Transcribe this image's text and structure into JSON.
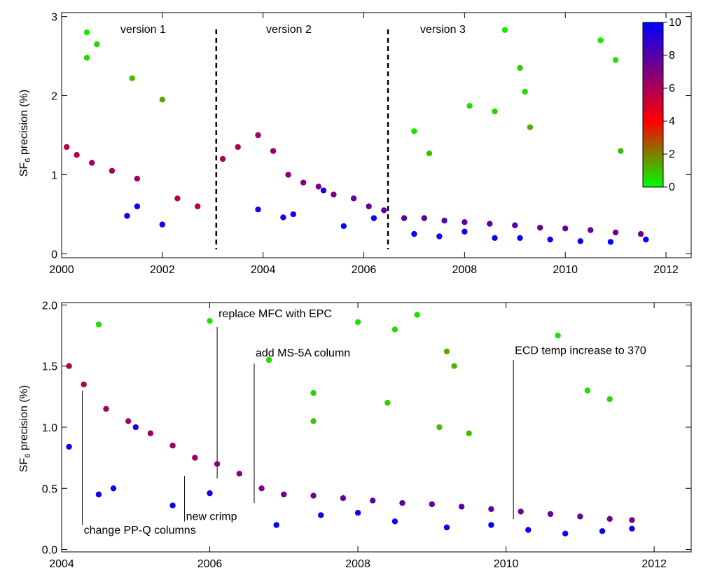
{
  "colors": {
    "colorscale": [
      "#00ff00",
      "#ff0000",
      "#0000ff"
    ],
    "axis": "#000000",
    "marker_edge": "#000000"
  },
  "colorbar": {
    "range": [
      0,
      10
    ],
    "ticks": [
      "0",
      "2",
      "4",
      "6",
      "8",
      "10"
    ],
    "scale_stops": [
      0,
      4,
      10
    ],
    "orientation": "vertical",
    "placement": "top-right of top panel"
  },
  "chart_data": [
    {
      "type": "scatter",
      "panel": "top",
      "title": "",
      "ylabel_main": "SF",
      "ylabel_sub": "6",
      "ylabel_rest": " precision (%)",
      "xlabel": "",
      "xlim": [
        2000,
        2012.5
      ],
      "ylim": [
        -0.05,
        3.05
      ],
      "x_ticks": [
        2000,
        2002,
        2004,
        2006,
        2008,
        2010,
        2012
      ],
      "x_tick_labels": [
        "2000",
        "2002",
        "2004",
        "2006",
        "2008",
        "2010",
        "2012"
      ],
      "y_ticks": [
        0,
        1,
        2,
        3
      ],
      "y_tick_labels": [
        "0",
        "1",
        "2",
        "3"
      ],
      "grid": false,
      "version_dividers": [
        2003.07,
        2006.48
      ],
      "version_labels": [
        "version 1",
        "version 2",
        "version 3"
      ],
      "series": [
        {
          "type": "scatter",
          "x": [
            2000.5,
            2000.7,
            2000.5,
            2001.4,
            2002.0,
            2007.0,
            2008.8,
            2009.1,
            2009.2,
            2010.7,
            2011.0,
            2011.1,
            2008.1,
            2009.3,
            2007.3,
            2008.6
          ],
          "y": [
            2.8,
            2.65,
            2.48,
            2.22,
            1.95,
            1.55,
            2.83,
            2.35,
            2.05,
            2.7,
            2.45,
            1.3,
            1.87,
            1.6,
            1.27,
            1.8
          ],
          "color_values": [
            0.4,
            0.6,
            0.5,
            1.0,
            1.4,
            0.5,
            0.3,
            0.8,
            0.6,
            0.3,
            0.5,
            1.0,
            0.6,
            1.3,
            0.9,
            0.7
          ]
        },
        {
          "type": "scatter",
          "x": [
            2000.1,
            2000.3,
            2000.6,
            2001.0,
            2001.5,
            2002.3,
            2002.7,
            2003.2,
            2003.5,
            2003.9,
            2004.2,
            2004.5,
            2004.8,
            2005.1,
            2005.4,
            2005.8,
            2006.1,
            2006.4,
            2006.8,
            2007.2,
            2007.6,
            2008.0,
            2008.5,
            2009.0,
            2009.5,
            2010.0,
            2010.5,
            2011.0,
            2011.5
          ],
          "y": [
            1.35,
            1.25,
            1.15,
            1.05,
            0.95,
            0.7,
            0.6,
            1.2,
            1.35,
            1.5,
            1.3,
            1.0,
            0.9,
            0.85,
            0.75,
            0.7,
            0.6,
            0.55,
            0.45,
            0.45,
            0.42,
            0.4,
            0.38,
            0.36,
            0.33,
            0.32,
            0.3,
            0.27,
            0.25
          ],
          "color_values": [
            5.6,
            5.8,
            6.0,
            6.1,
            6.2,
            5.9,
            5.5,
            6.0,
            5.8,
            6.2,
            6.4,
            6.7,
            6.9,
            7.1,
            7.3,
            7.5,
            7.6,
            7.7,
            7.8,
            7.8,
            7.9,
            7.9,
            7.8,
            7.7,
            7.6,
            7.6,
            7.5,
            7.4,
            7.3
          ]
        },
        {
          "type": "scatter",
          "x": [
            2001.3,
            2001.5,
            2002.0,
            2003.9,
            2004.4,
            2004.6,
            2005.2,
            2005.6,
            2006.2,
            2007.0,
            2007.5,
            2008.0,
            2008.6,
            2009.1,
            2009.7,
            2010.3,
            2010.9,
            2011.6
          ],
          "y": [
            0.48,
            0.6,
            0.37,
            0.56,
            0.46,
            0.5,
            0.8,
            0.35,
            0.45,
            0.25,
            0.22,
            0.28,
            0.2,
            0.2,
            0.18,
            0.16,
            0.15,
            0.18
          ],
          "color_values": [
            9.7,
            9.8,
            9.6,
            9.5,
            9.6,
            9.7,
            9.4,
            9.8,
            9.6,
            9.8,
            9.7,
            9.8,
            9.7,
            9.8,
            9.7,
            9.8,
            9.8,
            9.8
          ]
        }
      ]
    },
    {
      "type": "scatter",
      "panel": "bottom",
      "title": "",
      "ylabel_main": "SF",
      "ylabel_sub": "6",
      "ylabel_rest": " precision (%)",
      "xlabel": "",
      "xlim": [
        2004,
        2012.5
      ],
      "ylim": [
        -0.02,
        2.02
      ],
      "x_ticks": [
        2004,
        2006,
        2008,
        2010,
        2012
      ],
      "x_tick_labels": [
        "2004",
        "2006",
        "2008",
        "2010",
        "2012"
      ],
      "y_ticks": [
        0.0,
        0.5,
        1.0,
        1.5,
        2.0
      ],
      "y_tick_labels": [
        "0.0",
        "0.5",
        "1.0",
        "1.5",
        "2.0"
      ],
      "grid": false,
      "annotations": [
        {
          "text": "change PP-Q columns",
          "x": 2004.28,
          "y_top": 1.3,
          "y_bottom": 0.2,
          "label_y": 0.13
        },
        {
          "text": "new crimp",
          "x": 2005.66,
          "y_top": 0.6,
          "y_bottom": 0.23,
          "label_y": 0.24
        },
        {
          "text": "replace MFC with EPC",
          "x": 2006.1,
          "y_top": 1.82,
          "y_bottom": 0.58,
          "label_y": 1.9
        },
        {
          "text": "add MS-5A column",
          "x": 2006.6,
          "y_top": 1.52,
          "y_bottom": 0.38,
          "label_y": 1.58
        },
        {
          "text": "ECD temp increase to 370",
          "x": 2010.1,
          "y_top": 1.55,
          "y_bottom": 0.25,
          "label_y": 1.6
        }
      ],
      "series": [
        {
          "type": "scatter",
          "x": [
            2004.5,
            2006.0,
            2006.8,
            2007.4,
            2008.0,
            2008.5,
            2008.8,
            2009.2,
            2009.3,
            2010.7,
            2011.1,
            2011.4,
            2007.4,
            2008.4,
            2009.1,
            2009.5
          ],
          "y": [
            1.84,
            1.87,
            1.55,
            1.28,
            1.86,
            1.8,
            1.92,
            1.62,
            1.5,
            1.75,
            1.3,
            1.23,
            1.05,
            1.2,
            1.0,
            0.95
          ],
          "color_values": [
            0.6,
            0.4,
            0.5,
            0.7,
            0.5,
            0.6,
            0.5,
            1.3,
            1.2,
            0.4,
            0.5,
            0.6,
            0.9,
            0.8,
            1.1,
            1.0
          ]
        },
        {
          "type": "scatter",
          "x": [
            2004.1,
            2004.3,
            2004.6,
            2004.9,
            2005.2,
            2005.5,
            2005.8,
            2006.1,
            2006.4,
            2006.7,
            2007.0,
            2007.4,
            2007.8,
            2008.2,
            2008.6,
            2009.0,
            2009.4,
            2009.8,
            2010.2,
            2010.6,
            2011.0,
            2011.4,
            2011.7
          ],
          "y": [
            1.5,
            1.35,
            1.15,
            1.05,
            0.95,
            0.85,
            0.75,
            0.7,
            0.62,
            0.5,
            0.45,
            0.44,
            0.42,
            0.4,
            0.38,
            0.37,
            0.35,
            0.33,
            0.31,
            0.29,
            0.27,
            0.25,
            0.24
          ],
          "color_values": [
            5.8,
            6.0,
            6.1,
            6.2,
            6.3,
            6.4,
            6.5,
            6.7,
            6.9,
            7.1,
            7.3,
            7.5,
            7.6,
            7.7,
            7.8,
            7.8,
            7.8,
            7.7,
            7.6,
            7.6,
            7.5,
            7.4,
            7.3
          ]
        },
        {
          "type": "scatter",
          "x": [
            2004.1,
            2004.5,
            2004.7,
            2005.0,
            2005.5,
            2006.0,
            2006.9,
            2007.5,
            2008.0,
            2008.5,
            2009.2,
            2009.8,
            2010.3,
            2010.8,
            2011.3,
            2011.7
          ],
          "y": [
            0.84,
            0.45,
            0.5,
            1.0,
            0.36,
            0.46,
            0.2,
            0.28,
            0.3,
            0.23,
            0.18,
            0.2,
            0.16,
            0.13,
            0.15,
            0.17
          ],
          "color_values": [
            9.6,
            9.7,
            9.8,
            9.5,
            9.8,
            9.6,
            9.8,
            9.7,
            9.8,
            9.8,
            9.7,
            9.8,
            9.8,
            9.8,
            9.8,
            9.8
          ]
        }
      ]
    }
  ]
}
